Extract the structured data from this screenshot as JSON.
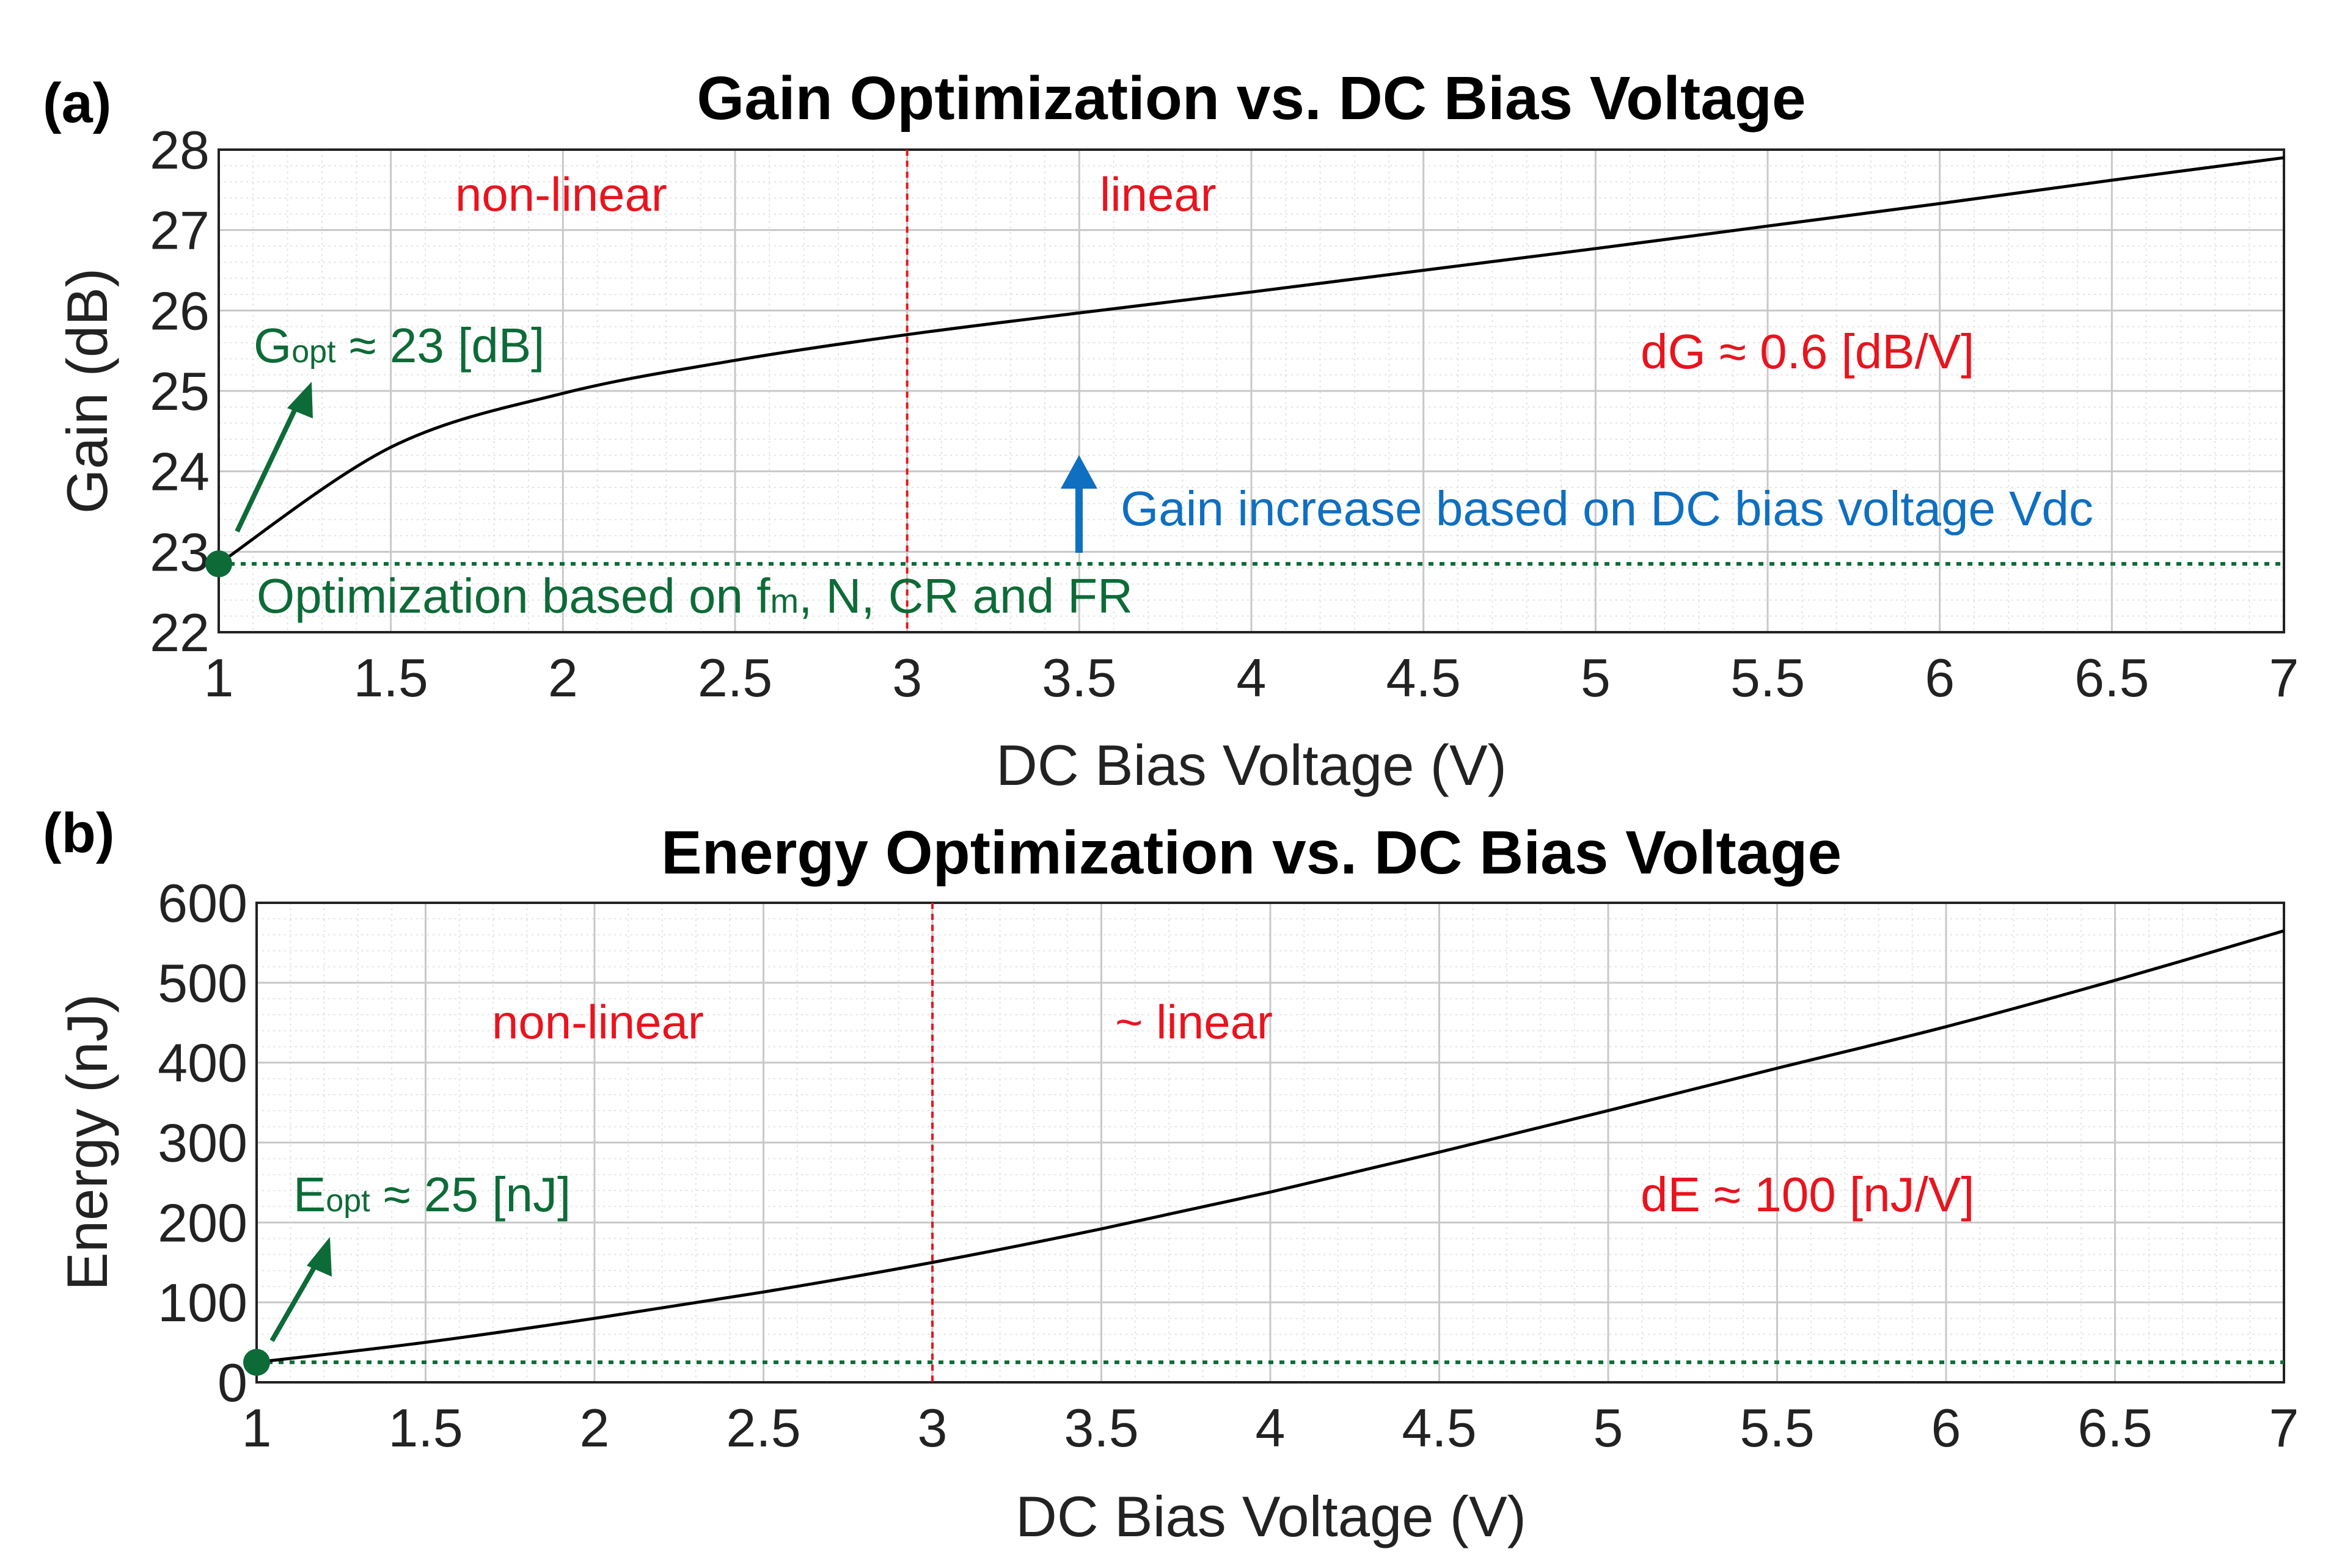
{
  "colors": {
    "curve": "#000000",
    "opt": "#0d6b37",
    "boundary": "#e8141e",
    "region_text": "#e8141e",
    "slope_text": "#e8141e",
    "blue": "#0f6fc0",
    "grid": "#c8c8c8",
    "minor_grid": "#e3e3e3"
  },
  "chart_data": [
    {
      "type": "line",
      "panel_label": "(a)",
      "title": "Gain Optimization vs. DC Bias Voltage",
      "xlabel": "DC Bias Voltage (V)",
      "ylabel": "Gain (dB)",
      "xlim": [
        1,
        7
      ],
      "ylim": [
        22,
        28
      ],
      "xticks": [
        1,
        1.5,
        2,
        2.5,
        3,
        3.5,
        4,
        4.5,
        5,
        5.5,
        6,
        6.5,
        7
      ],
      "yticks": [
        22,
        23,
        24,
        25,
        26,
        27,
        28
      ],
      "x": [
        1,
        1.5,
        2,
        2.5,
        3,
        3.5,
        4,
        4.5,
        5,
        5.5,
        6,
        6.5,
        7
      ],
      "y": [
        22.85,
        24.3,
        24.97,
        25.38,
        25.7,
        25.97,
        26.23,
        26.5,
        26.77,
        27.05,
        27.33,
        27.62,
        27.9
      ],
      "grid": true,
      "minor_grid": true,
      "boundary_x": 3,
      "opt_point": {
        "x": 1,
        "y": 22.85
      },
      "opt_line_y": 22.85,
      "region_labels": {
        "left": "non-linear",
        "right": "linear"
      },
      "opt_label_main": "G",
      "opt_label_sub": "opt",
      "opt_label_rest": " ≈ 23 [dB]",
      "slope_label": "dG ≈ 0.6 [dB/V]",
      "increase_label": "Gain increase based on DC bias voltage Vdc",
      "optimization_label_pre": "Optimization based on f",
      "optimization_label_sub": "m",
      "optimization_label_post": ", N, CR and FR"
    },
    {
      "type": "line",
      "panel_label": "(b)",
      "title": "Energy Optimization vs. DC Bias Voltage",
      "xlabel": "DC Bias Voltage (V)",
      "ylabel": "Energy (nJ)",
      "xlim": [
        1,
        7
      ],
      "ylim": [
        0,
        600
      ],
      "xticks": [
        1,
        1.5,
        2,
        2.5,
        3,
        3.5,
        4,
        4.5,
        5,
        5.5,
        6,
        6.5,
        7
      ],
      "yticks": [
        0,
        100,
        200,
        300,
        400,
        500,
        600
      ],
      "x": [
        1,
        1.5,
        2,
        2.5,
        3,
        3.5,
        4,
        4.5,
        5,
        5.5,
        6,
        6.5,
        7
      ],
      "y": [
        25,
        50,
        80,
        113,
        150,
        192,
        238,
        288,
        340,
        393,
        445,
        503,
        565
      ],
      "grid": true,
      "minor_grid": true,
      "boundary_x": 3,
      "opt_point": {
        "x": 1,
        "y": 25
      },
      "opt_line_y": 25,
      "region_labels": {
        "left": "non-linear",
        "right": "~ linear"
      },
      "opt_label_main": "E",
      "opt_label_sub": "opt",
      "opt_label_rest": " ≈ 25 [nJ]",
      "slope_label": "dE ≈ 100 [nJ/V]"
    }
  ]
}
